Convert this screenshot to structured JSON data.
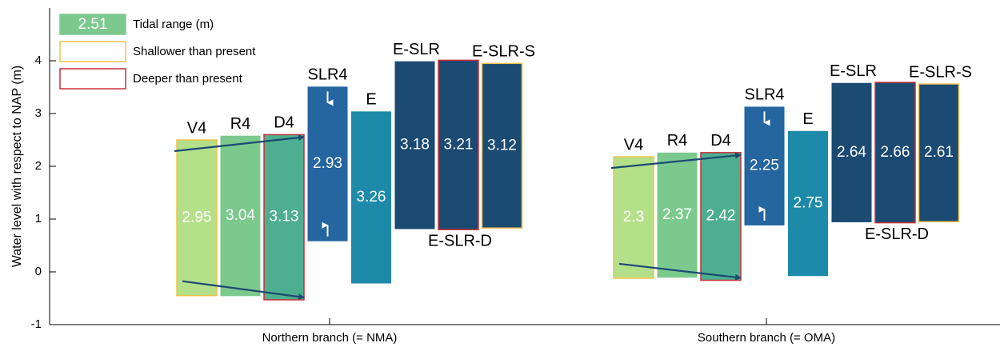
{
  "chart_data": {
    "type": "floating-bar",
    "y_label": "Water level with respect to NAP (m)",
    "ylim": [
      -1,
      5
    ],
    "yticks": [
      -1,
      0,
      1,
      2,
      3,
      4
    ],
    "legend": [
      {
        "sample": "2.51",
        "label": "Tidal range (m)",
        "color": "#7cc98d"
      },
      {
        "label": "Shallower than present",
        "edgecolor": "#f0c24a"
      },
      {
        "label": "Deeper than present",
        "edgecolor": "#c9313a"
      }
    ],
    "groups": [
      {
        "name": "Northern branch (= NMA)",
        "bars": [
          {
            "name": "V4",
            "low": -0.45,
            "high": 2.5,
            "range": 2.95,
            "color": "#b5e08a",
            "edgecolor": "#f0c24a"
          },
          {
            "name": "R4",
            "low": -0.46,
            "high": 2.58,
            "range": 3.04,
            "color": "#7cc98d"
          },
          {
            "name": "D4",
            "low": -0.53,
            "high": 2.6,
            "range": 3.13,
            "color": "#4daf8f",
            "edgecolor": "#c9313a"
          },
          {
            "name": "SLR4",
            "low": 0.58,
            "high": 3.51,
            "range": 2.93,
            "color": "#2565a0"
          },
          {
            "name": "E",
            "low": -0.22,
            "high": 3.04,
            "range": 3.26,
            "color": "#1e8aa9"
          },
          {
            "name": "E-SLR",
            "low": 0.81,
            "high": 3.99,
            "range": 3.18,
            "color": "#1b4a73"
          },
          {
            "name": "E-SLR-D",
            "low": 0.8,
            "high": 4.01,
            "range": 3.21,
            "color": "#1b4a73",
            "edgecolor": "#c9313a",
            "label_pos": "below"
          },
          {
            "name": "E-SLR-S",
            "low": 0.83,
            "high": 3.95,
            "range": 3.12,
            "color": "#1b4a73",
            "edgecolor": "#f0c24a"
          }
        ]
      },
      {
        "name": "Southern branch (= OMA)",
        "bars": [
          {
            "name": "V4",
            "low": -0.12,
            "high": 2.18,
            "range": 2.3,
            "color": "#b5e08a",
            "edgecolor": "#f0c24a"
          },
          {
            "name": "R4",
            "low": -0.11,
            "high": 2.26,
            "range": 2.37,
            "color": "#7cc98d"
          },
          {
            "name": "D4",
            "low": -0.16,
            "high": 2.26,
            "range": 2.42,
            "color": "#4daf8f",
            "edgecolor": "#c9313a"
          },
          {
            "name": "SLR4",
            "low": 0.88,
            "high": 3.13,
            "range": 2.25,
            "color": "#2565a0"
          },
          {
            "name": "E",
            "low": -0.08,
            "high": 2.67,
            "range": 2.75,
            "color": "#1e8aa9"
          },
          {
            "name": "E-SLR",
            "low": 0.94,
            "high": 3.58,
            "range": 2.64,
            "color": "#1b4a73"
          },
          {
            "name": "E-SLR-D",
            "low": 0.93,
            "high": 3.59,
            "range": 2.66,
            "color": "#1b4a73",
            "edgecolor": "#c9313a",
            "label_pos": "below"
          },
          {
            "name": "E-SLR-S",
            "low": 0.95,
            "high": 3.56,
            "range": 2.61,
            "color": "#1b4a73",
            "edgecolor": "#f0c24a"
          }
        ]
      }
    ]
  }
}
